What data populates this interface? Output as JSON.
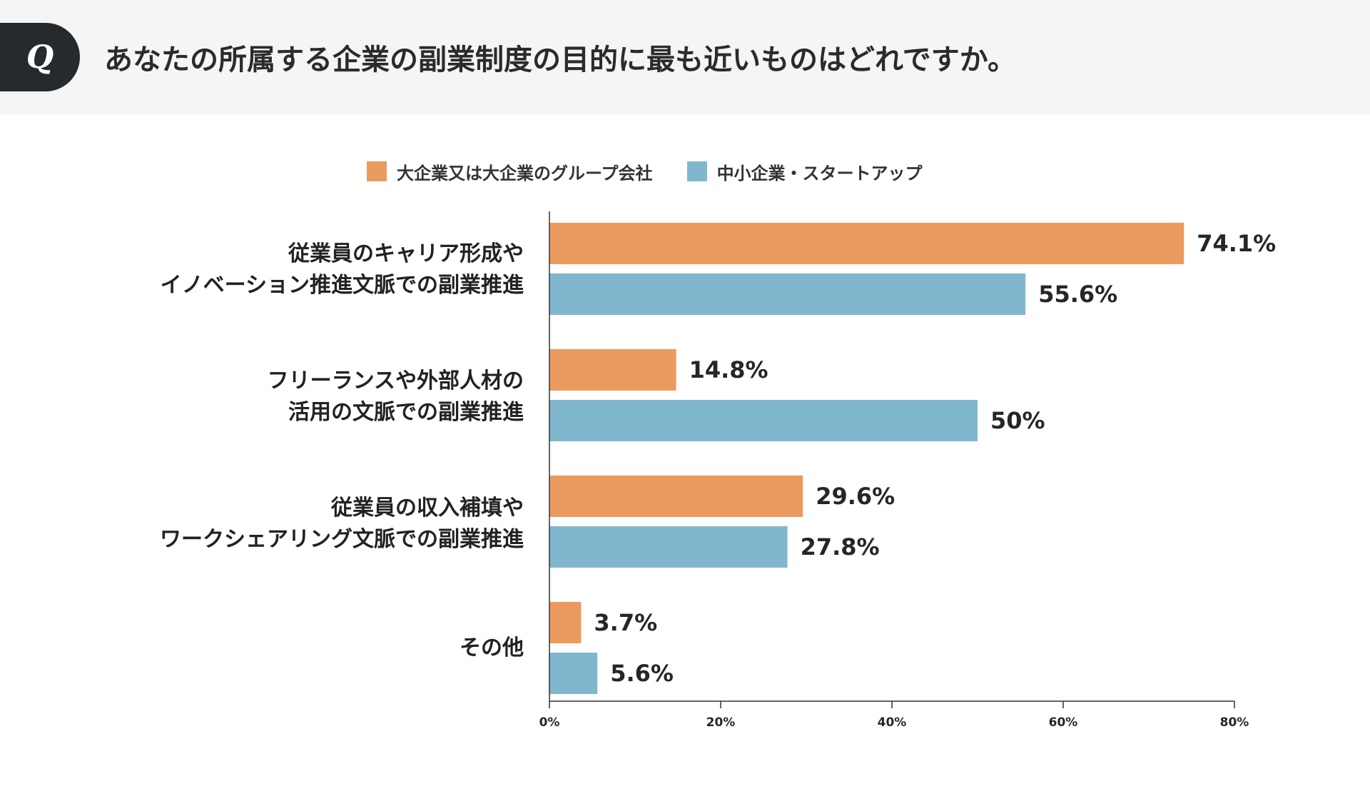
{
  "header": {
    "badge_letter": "Q",
    "question": "あなたの所属する企業の副業制度の目的に最も近いものはどれですか。"
  },
  "colors": {
    "large": "#eb9a5f",
    "small": "#80b7ce",
    "axis": "#333333",
    "value_text": "#262626"
  },
  "chart_data": {
    "type": "bar",
    "orientation": "horizontal",
    "title": "",
    "categories": [
      [
        "従業員のキャリア形成や",
        "イノベーション推進文脈での副業推進"
      ],
      [
        "フリーランスや外部人材の",
        "活用の文脈での副業推進"
      ],
      [
        "従業員の収入補填や",
        "ワークシェアリング文脈での副業推進"
      ],
      [
        "その他"
      ]
    ],
    "series": [
      {
        "name": "大企業又は大企業のグループ会社",
        "values": [
          74.1,
          14.8,
          29.6,
          3.7
        ],
        "labels": [
          "74.1%",
          "14.8%",
          "29.6%",
          "3.7%"
        ]
      },
      {
        "name": "中小企業・スタートアップ",
        "values": [
          55.6,
          50,
          27.8,
          5.6
        ],
        "labels": [
          "55.6%",
          "50%",
          "27.8%",
          "5.6%"
        ]
      }
    ],
    "xlim": [
      0,
      80
    ],
    "xticks": [
      0,
      20,
      40,
      60,
      80
    ],
    "xtick_labels": [
      "0%",
      "20%",
      "40%",
      "60%",
      "80%"
    ],
    "legend": "top",
    "grid": false
  }
}
